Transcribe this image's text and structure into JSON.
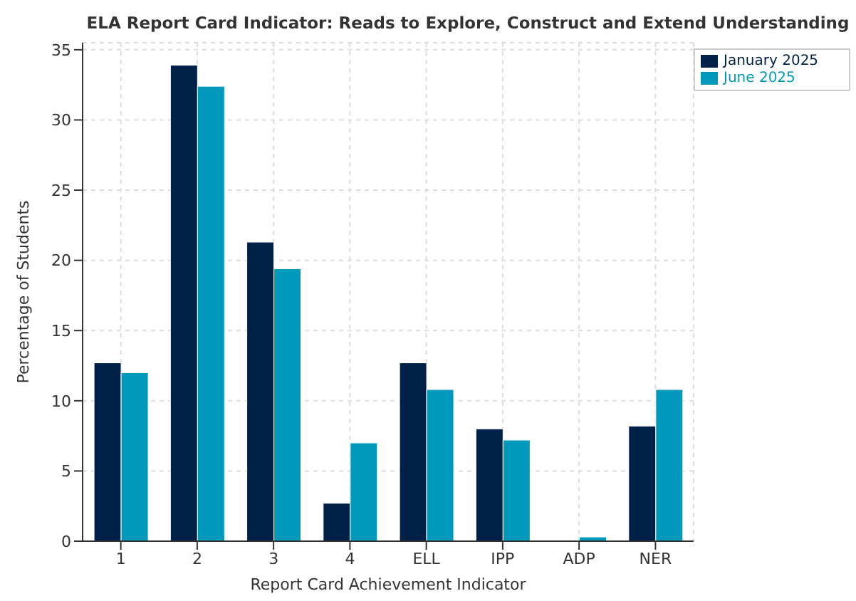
{
  "chart_data": {
    "type": "bar",
    "title": "ELA Report Card Indicator: Reads to Explore, Construct and Extend Understanding",
    "xlabel": "Report Card Achievement Indicator",
    "ylabel": "Percentage of Students",
    "categories": [
      "1",
      "2",
      "3",
      "4",
      "ELL",
      "IPP",
      "ADP",
      "NER"
    ],
    "series": [
      {
        "name": "January 2025",
        "color": "#002147",
        "values": [
          12.7,
          33.9,
          21.3,
          2.7,
          12.7,
          8.0,
          0,
          8.2
        ]
      },
      {
        "name": "June 2025",
        "color": "#0099bb",
        "values": [
          12.0,
          32.4,
          19.4,
          7.0,
          10.8,
          7.2,
          0.3,
          10.8
        ]
      }
    ],
    "ylim": [
      0,
      35.5
    ],
    "yticks": [
      0,
      5,
      10,
      15,
      20,
      25,
      30,
      35
    ],
    "grid": true,
    "legend": "top right"
  }
}
